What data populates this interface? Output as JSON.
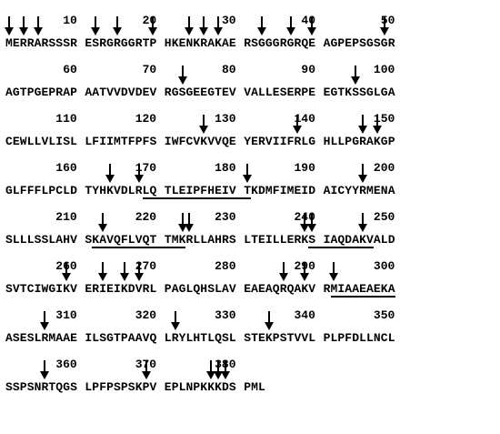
{
  "rows": [
    {
      "start": 1,
      "blocks": [
        "MERRARSSSR",
        "ESRGRGGRTP",
        "HKENKRAKAE",
        "RSGGGRGRQE",
        "AGPEPSGSGR"
      ],
      "numbers": [
        "10",
        "20",
        "30",
        "40",
        "50"
      ],
      "arrows": [
        1,
        3,
        5,
        12,
        15,
        20,
        24,
        26,
        28,
        33,
        37,
        40,
        49
      ],
      "underlines": []
    },
    {
      "start": 51,
      "blocks": [
        "AGTPGEPRAP",
        "AATVVDVDEV",
        "RGSGEEGTEV",
        "VALLESERPE",
        "EGTKSSGLGA"
      ],
      "numbers": [
        "60",
        "70",
        "80",
        "90",
        "100"
      ],
      "arrows": [
        73,
        95
      ],
      "underlines": []
    },
    {
      "start": 101,
      "blocks": [
        "CEWLLVLISL",
        "LFIIMTFPFS",
        "IWFCVKVVQE",
        "YERVIIFRLG",
        "HLLPGRAKGP"
      ],
      "numbers": [
        "110",
        "120",
        "130",
        "140",
        "150"
      ],
      "arrows": [
        126,
        138,
        146,
        148
      ],
      "underlines": []
    },
    {
      "start": 151,
      "blocks": [
        "GLFFFLPCLD",
        "TYHKVDLRLQ",
        "TLEIPFHEIV",
        "TKDMFIMEID",
        "AICYYRMENA"
      ],
      "numbers": [
        "160",
        "170",
        "180",
        "190",
        "200"
      ],
      "arrows": [
        164,
        168,
        181,
        196
      ],
      "underlines": [
        [
          169,
          181
        ]
      ]
    },
    {
      "start": 201,
      "blocks": [
        "SLLLSSLAHV",
        "SKAVQFLVQT",
        "TMKRLLAHRS",
        "LTEILLERKS",
        "IAQDAKVALD"
      ],
      "numbers": [
        "210",
        "220",
        "230",
        "240",
        "250"
      ],
      "arrows": [
        213,
        223,
        224,
        239,
        240,
        246
      ],
      "underlines": [
        [
          212,
          223
        ],
        [
          240,
          247
        ]
      ]
    },
    {
      "start": 251,
      "blocks": [
        "SVTCIWGIKV",
        "ERIEIKDVRL",
        "PAGLQHSLAV",
        "EAEAQRQAKV",
        "RMIAAEAEKA"
      ],
      "numbers": [
        "260",
        "270",
        "280",
        "290",
        "300"
      ],
      "arrows": [
        259,
        263,
        266,
        268,
        286,
        289,
        292
      ],
      "underlines": [
        [
          292,
          300
        ]
      ]
    },
    {
      "start": 301,
      "blocks": [
        "ASESLRMAAE",
        "ILSGTPAAVQ",
        "LRYLHTLQSL",
        "STEKPSTVVL",
        "PLPFDLLNCL"
      ],
      "numbers": [
        "310",
        "320",
        "330",
        "340",
        "350"
      ],
      "arrows": [
        306,
        322,
        334
      ],
      "underlines": []
    },
    {
      "start": 351,
      "blocks": [
        "SSPSNRTQGS",
        "LPFPSPSKPV",
        "EPLNPKKKDS",
        "PML"
      ],
      "numbers": [
        "360",
        "370",
        "380"
      ],
      "arrows": [
        356,
        369,
        377,
        378,
        379
      ],
      "underlines": []
    }
  ]
}
